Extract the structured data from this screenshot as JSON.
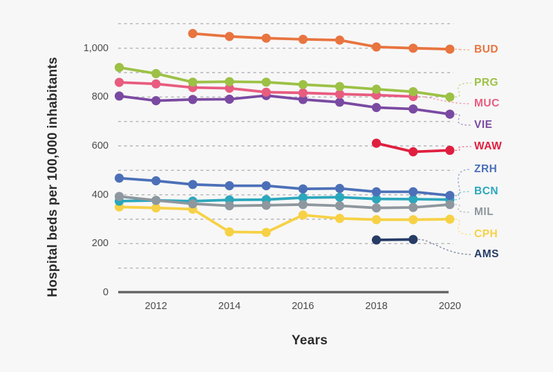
{
  "chart_data": {
    "type": "line",
    "title": "",
    "xlabel": "Years",
    "ylabel": "Hospital beds per 100,000 inhabitants",
    "x": [
      2011,
      2012,
      2013,
      2014,
      2015,
      2016,
      2017,
      2018,
      2019,
      2020
    ],
    "x_ticks": [
      2012,
      2014,
      2016,
      2018,
      2020
    ],
    "x_tick_labels": [
      "2012",
      "2014",
      "2016",
      "2018",
      "2020"
    ],
    "y_ticks": [
      0,
      200,
      400,
      600,
      800,
      1000
    ],
    "y_tick_labels": [
      "0",
      "200",
      "400",
      "600",
      "800",
      "1,000"
    ],
    "ylim": [
      0,
      1150
    ],
    "grid": {
      "show": true,
      "interval": 100,
      "max": 1100,
      "style": "dashed"
    },
    "legend_position": "right-inline-labels",
    "series": [
      {
        "name": "BUD",
        "color": "#E8743F",
        "label_y": 72,
        "values": [
          null,
          null,
          1060,
          1048,
          1041,
          1036,
          1033,
          1005,
          1000,
          996
        ]
      },
      {
        "name": "PRG",
        "color": "#9CC145",
        "label_y": 120,
        "values": [
          921,
          896,
          861,
          863,
          861,
          851,
          843,
          832,
          822,
          800
        ]
      },
      {
        "name": "MUC",
        "color": "#E85C80",
        "label_y": 150,
        "values": [
          860,
          854,
          839,
          836,
          820,
          817,
          812,
          808,
          802,
          null
        ]
      },
      {
        "name": "VIE",
        "color": "#7A4AA2",
        "label_y": 181,
        "values": [
          804,
          785,
          790,
          791,
          806,
          790,
          779,
          757,
          751,
          730
        ]
      },
      {
        "name": "WAW",
        "color": "#E01F3F",
        "label_y": 212,
        "values": [
          null,
          null,
          null,
          null,
          null,
          null,
          null,
          611,
          576,
          582
        ]
      },
      {
        "name": "ZRH",
        "color": "#4C70B8",
        "label_y": 245,
        "values": [
          468,
          457,
          442,
          437,
          437,
          424,
          426,
          412,
          412,
          397
        ]
      },
      {
        "name": "BCN",
        "color": "#2BA7BC",
        "label_y": 277,
        "values": [
          374,
          377,
          374,
          379,
          380,
          388,
          390,
          383,
          382,
          380
        ]
      },
      {
        "name": "MIL",
        "color": "#8E979E",
        "label_y": 307,
        "values": [
          393,
          377,
          363,
          355,
          357,
          360,
          355,
          346,
          348,
          360
        ]
      },
      {
        "name": "CPH",
        "color": "#F7D145",
        "label_y": 339,
        "values": [
          350,
          346,
          341,
          248,
          246,
          317,
          303,
          298,
          298,
          300
        ]
      },
      {
        "name": "AMS",
        "color": "#263C66",
        "label_y": 368,
        "values": [
          null,
          null,
          null,
          null,
          null,
          null,
          null,
          215,
          217,
          null
        ]
      }
    ]
  },
  "colors": {
    "background": "#F7F7F7",
    "axis_line": "#666666",
    "gridline": "#B2B2B5",
    "tick_text": "#4A4A4A",
    "title_text": "#2B2B2B"
  }
}
